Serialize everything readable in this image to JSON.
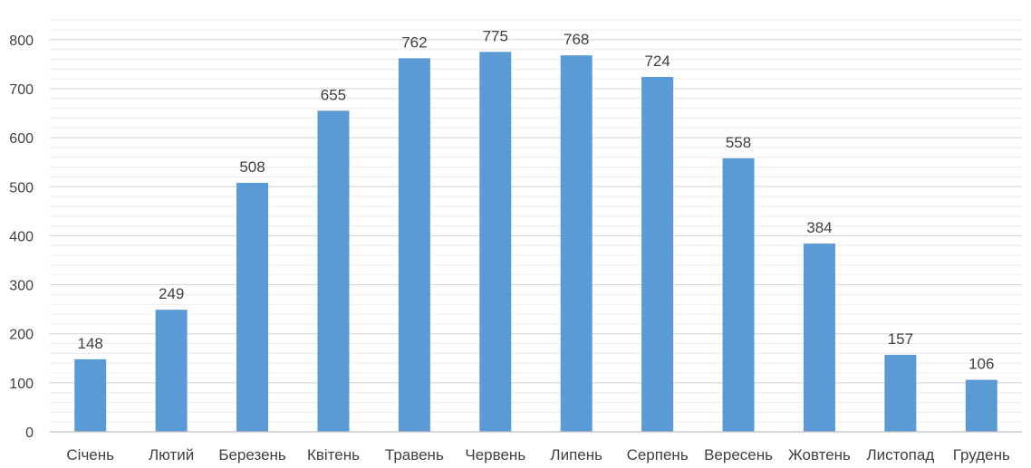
{
  "chart_data": {
    "type": "bar",
    "categories": [
      "Січень",
      "Лютий",
      "Березень",
      "Квітень",
      "Травень",
      "Червень",
      "Липень",
      "Серпень",
      "Вересень",
      "Жовтень",
      "Листопад",
      "Грудень"
    ],
    "values": [
      148,
      249,
      508,
      655,
      762,
      775,
      768,
      724,
      558,
      384,
      157,
      106
    ],
    "ylim": [
      0,
      850
    ],
    "yticks": [
      0,
      100,
      200,
      300,
      400,
      500,
      600,
      700,
      800
    ],
    "minor_grid_step": 20,
    "grid": true,
    "data_labels": true,
    "legend": "none",
    "bar_color": "#5b9bd5"
  }
}
